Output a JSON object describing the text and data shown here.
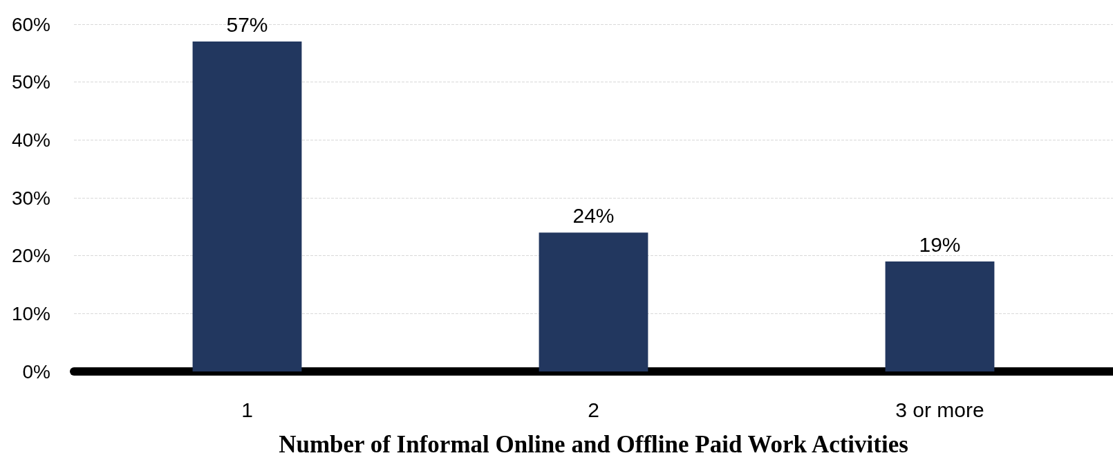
{
  "chart_data": {
    "type": "bar",
    "xlabel": "Number of Informal Online and Offline Paid Work Activities",
    "categories": [
      "1",
      "2",
      "3 or more"
    ],
    "values": [
      57,
      24,
      19
    ],
    "color": "#22375f",
    "value_labels": [
      "57%",
      "24%",
      "19%"
    ],
    "ylim": [
      0,
      60
    ],
    "yticks": [
      {
        "value": 0,
        "label": "0%"
      },
      {
        "value": 10,
        "label": "10%"
      },
      {
        "value": 20,
        "label": "20%"
      },
      {
        "value": 30,
        "label": "30%"
      },
      {
        "value": 40,
        "label": "40%"
      },
      {
        "value": 50,
        "label": "50%"
      },
      {
        "value": 60,
        "label": "60%"
      }
    ],
    "grid": "y"
  }
}
